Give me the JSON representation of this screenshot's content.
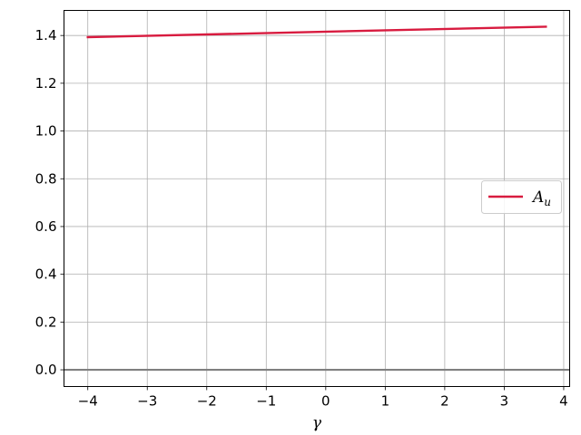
{
  "chart_data": {
    "type": "line",
    "title": "",
    "xlabel": "γ",
    "ylabel": "",
    "xlim": [
      -4.4,
      4.1
    ],
    "ylim": [
      -0.07,
      1.505
    ],
    "xticks": [
      -4,
      -3,
      -2,
      -1,
      0,
      1,
      2,
      3,
      4
    ],
    "xtick_labels": [
      "−4",
      "−3",
      "−2",
      "−1",
      "0",
      "1",
      "2",
      "3",
      "4"
    ],
    "yticks": [
      0.0,
      0.2,
      0.4,
      0.6,
      0.8,
      1.0,
      1.2,
      1.4
    ],
    "ytick_labels": [
      "0.0",
      "0.2",
      "0.4",
      "0.6",
      "0.8",
      "1.0",
      "1.2",
      "1.4"
    ],
    "grid": true,
    "legend_placement": "center-right",
    "reference_line": {
      "y": 0.0,
      "color": "#808080"
    },
    "series": [
      {
        "name": "A_u",
        "legend_base": "A",
        "legend_sub": "u",
        "color": "#d81b3f",
        "x": [
          -4.0,
          3.7
        ],
        "y": [
          1.393,
          1.437
        ]
      }
    ]
  }
}
